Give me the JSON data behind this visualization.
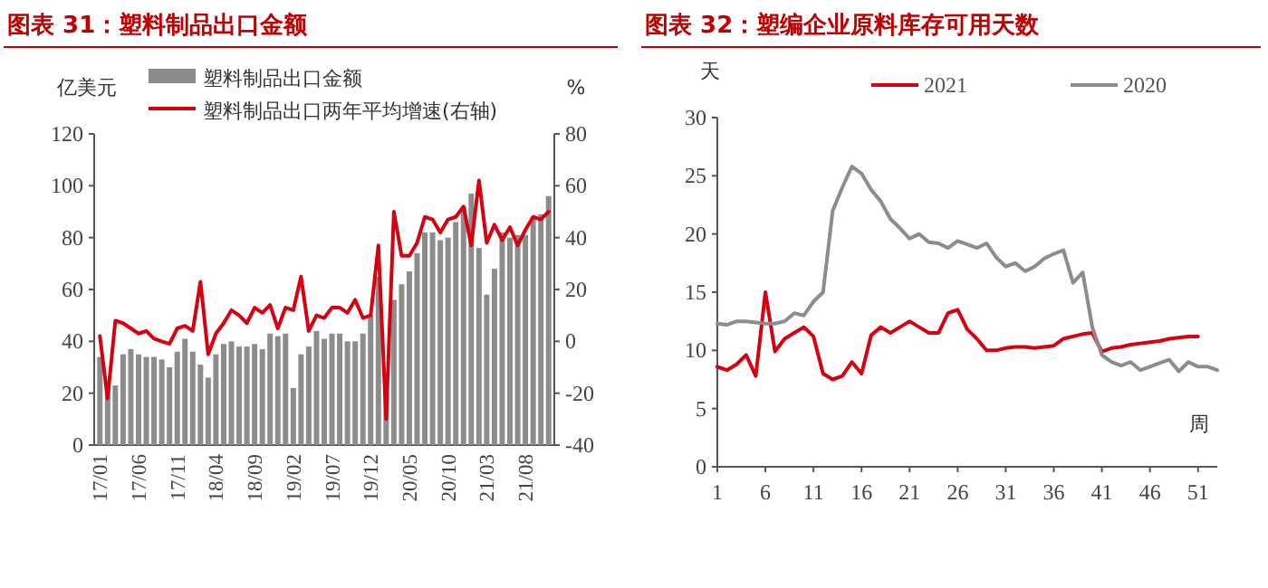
{
  "chart_data": [
    {
      "type": "bar",
      "title": "图表 31：塑料制品出口金额",
      "ylabel": "亿美元",
      "y2label": "%",
      "legend": "top left",
      "categories": [
        "17/01",
        null,
        null,
        null,
        null,
        "17/06",
        null,
        null,
        null,
        null,
        "17/11",
        null,
        null,
        null,
        null,
        "18/04",
        null,
        null,
        null,
        null,
        "18/09",
        null,
        null,
        null,
        null,
        "19/02",
        null,
        null,
        null,
        null,
        "19/07",
        null,
        null,
        null,
        null,
        "19/12",
        null,
        null,
        null,
        null,
        "20/05",
        null,
        null,
        null,
        null,
        "20/10",
        null,
        null,
        null,
        null,
        "21/03",
        null,
        null,
        null,
        null,
        "21/08",
        null,
        null,
        null
      ],
      "ylim": [
        0,
        120
      ],
      "yticks": [
        0,
        20,
        40,
        60,
        80,
        100,
        120
      ],
      "y2lim": [
        -40,
        80
      ],
      "y2ticks": [
        -40,
        -20,
        0,
        20,
        40,
        60,
        80
      ],
      "series": [
        {
          "name": "塑料制品出口金额",
          "color": "#8c8c8c",
          "values": [
            34,
            22,
            23,
            35,
            37,
            35,
            34,
            34,
            33,
            30,
            36,
            41,
            36,
            31,
            26,
            35,
            39,
            40,
            38,
            38,
            39,
            37,
            43,
            42,
            43,
            22,
            35,
            38,
            44,
            41,
            43,
            43,
            40,
            40,
            43,
            50,
            65,
            20,
            56,
            62,
            67,
            74,
            82,
            82,
            79,
            80,
            86,
            92,
            97,
            76,
            58,
            68,
            82,
            80,
            81,
            81,
            88,
            89,
            96
          ]
        },
        {
          "name": "塑料制品出口两年平均增速(右轴)",
          "type": "line",
          "axis": "y2",
          "color": "#d7000f",
          "values": [
            2,
            -22,
            8,
            7,
            5,
            3,
            4,
            1,
            0,
            -1,
            5,
            6,
            4,
            23,
            -5,
            3,
            7,
            12,
            10,
            7,
            13,
            11,
            14,
            5,
            13,
            12,
            25,
            4,
            10,
            9,
            13,
            13,
            11,
            16,
            9,
            10,
            37,
            -30,
            50,
            33,
            33,
            38,
            48,
            47,
            42,
            47,
            48,
            52,
            37,
            62,
            38,
            45,
            39,
            44,
            37,
            43,
            48,
            47,
            50
          ]
        }
      ]
    },
    {
      "type": "line",
      "title": "图表 32：塑编企业原料库存可用天数",
      "ylabel": "天",
      "xlabel": "周",
      "legend": "top",
      "x": [
        1,
        2,
        3,
        4,
        5,
        6,
        7,
        8,
        9,
        10,
        11,
        12,
        13,
        14,
        15,
        16,
        17,
        18,
        19,
        20,
        21,
        22,
        23,
        24,
        25,
        26,
        27,
        28,
        29,
        30,
        31,
        32,
        33,
        34,
        35,
        36,
        37,
        38,
        39,
        40,
        41,
        42,
        43,
        44,
        45,
        46,
        47,
        48,
        49,
        50,
        51,
        52,
        53
      ],
      "xlim": [
        1,
        53
      ],
      "xticks": [
        1,
        6,
        11,
        16,
        21,
        26,
        31,
        36,
        41,
        46,
        51
      ],
      "ylim": [
        0,
        30
      ],
      "yticks": [
        0,
        5,
        10,
        15,
        20,
        25,
        30
      ],
      "series": [
        {
          "name": "2021",
          "color": "#d7000f",
          "values": [
            8.6,
            8.3,
            8.8,
            9.6,
            7.8,
            15.0,
            9.9,
            11.0,
            11.5,
            12.0,
            11.2,
            8.0,
            7.5,
            7.8,
            9.0,
            8.0,
            11.3,
            12.0,
            11.5,
            12.0,
            12.5,
            12.0,
            11.5,
            11.5,
            13.2,
            13.5,
            11.8,
            11.0,
            10.0,
            10.0,
            10.2,
            10.3,
            10.3,
            10.2,
            10.3,
            10.4,
            11.0,
            11.2,
            11.4,
            11.5,
            9.9,
            10.2,
            10.3,
            10.5,
            10.6,
            10.7,
            10.8,
            11.0,
            11.1,
            11.2,
            11.2,
            null,
            null
          ]
        },
        {
          "name": "2020",
          "color": "#8c8c8c",
          "values": [
            12.3,
            12.2,
            12.5,
            12.5,
            12.4,
            12.3,
            12.3,
            12.5,
            13.2,
            13.0,
            14.2,
            15.0,
            22.0,
            24.0,
            25.8,
            25.2,
            23.8,
            22.8,
            21.3,
            20.5,
            19.6,
            20.0,
            19.3,
            19.2,
            18.8,
            19.4,
            19.1,
            18.8,
            19.2,
            18.0,
            17.2,
            17.5,
            16.8,
            17.2,
            17.9,
            18.3,
            18.6,
            15.8,
            16.7,
            12.0,
            9.6,
            9.0,
            8.7,
            9.0,
            8.3,
            8.6,
            8.9,
            9.2,
            8.2,
            9.0,
            8.6,
            8.6,
            8.3
          ]
        }
      ]
    }
  ]
}
